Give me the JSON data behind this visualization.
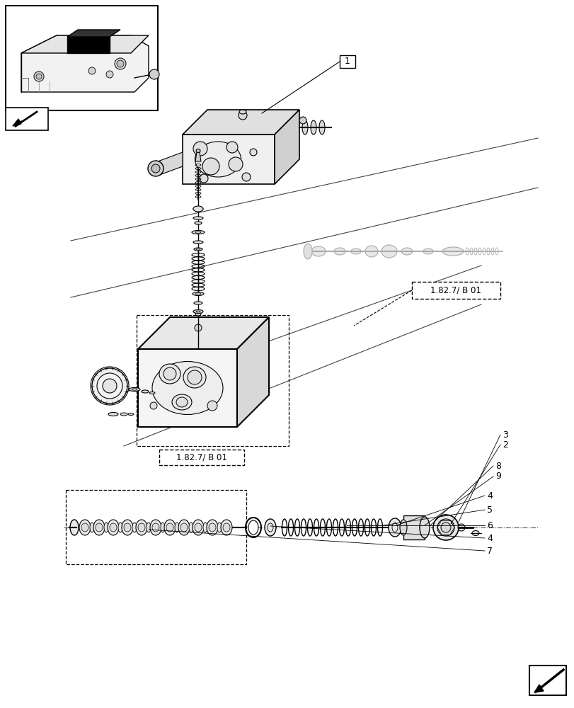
{
  "bg_color": "#ffffff",
  "line_color": "#000000",
  "page_width": 8.12,
  "page_height": 10.0,
  "dpi": 100,
  "ref_label": "1.82.7/ B 01",
  "part_label_1": "1",
  "labels": [
    "3",
    "2",
    "8",
    "9",
    "4",
    "5",
    "6",
    "4",
    "7"
  ]
}
